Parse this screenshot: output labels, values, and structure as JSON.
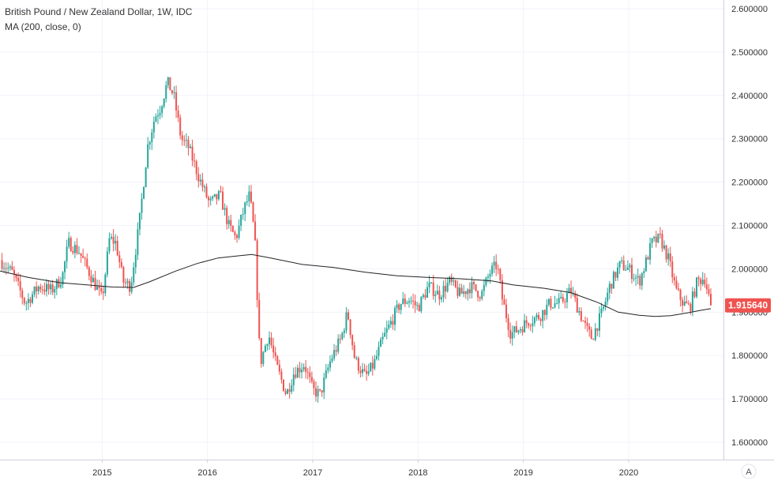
{
  "legend": {
    "symbol_line": "British Pound / New Zealand Dollar, 1W, IDC",
    "indicator_line": "MA (200, close, 0)"
  },
  "price_badge": "1.915640",
  "scale_mode_button": "A",
  "colors": {
    "up": "#26a69a",
    "down": "#ef5350",
    "ma": "#222222",
    "grid": "#f0f3fa",
    "axis_text": "#333333",
    "badge_bg": "#ef5350",
    "badge_text": "#ffffff"
  },
  "chart_data": {
    "type": "candlestick",
    "timeframe": "1W",
    "source": "IDC",
    "series_name": "British Pound / New Zealand Dollar",
    "x_ticks": [
      "2015",
      "2016",
      "2017",
      "2018",
      "2019",
      "2020"
    ],
    "y_ticks": [
      "1.600000",
      "1.700000",
      "1.800000",
      "1.900000",
      "2.000000",
      "2.100000",
      "2.200000",
      "2.300000",
      "2.400000",
      "2.500000",
      "2.600000"
    ],
    "ylim": [
      1.56,
      2.62
    ],
    "xlim": [
      2014.03,
      2020.9
    ],
    "last_price": 1.91564,
    "grid": true,
    "price_path": [
      [
        2014.03,
        2.02
      ],
      [
        2014.15,
        1.99
      ],
      [
        2014.27,
        1.92
      ],
      [
        2014.4,
        1.96
      ],
      [
        2014.52,
        1.95
      ],
      [
        2014.62,
        1.98
      ],
      [
        2014.68,
        2.06
      ],
      [
        2014.78,
        2.04
      ],
      [
        2014.9,
        1.98
      ],
      [
        2015.0,
        1.93
      ],
      [
        2015.07,
        2.07
      ],
      [
        2015.13,
        2.06
      ],
      [
        2015.2,
        1.97
      ],
      [
        2015.27,
        1.96
      ],
      [
        2015.35,
        2.1
      ],
      [
        2015.43,
        2.28
      ],
      [
        2015.5,
        2.35
      ],
      [
        2015.55,
        2.37
      ],
      [
        2015.62,
        2.43
      ],
      [
        2015.68,
        2.4
      ],
      [
        2015.75,
        2.3
      ],
      [
        2015.82,
        2.28
      ],
      [
        2015.92,
        2.21
      ],
      [
        2016.02,
        2.15
      ],
      [
        2016.12,
        2.17
      ],
      [
        2016.2,
        2.1
      ],
      [
        2016.27,
        2.07
      ],
      [
        2016.35,
        2.14
      ],
      [
        2016.4,
        2.17
      ],
      [
        2016.45,
        2.07
      ],
      [
        2016.5,
        1.78
      ],
      [
        2016.58,
        1.85
      ],
      [
        2016.65,
        1.78
      ],
      [
        2016.75,
        1.71
      ],
      [
        2016.82,
        1.76
      ],
      [
        2016.92,
        1.78
      ],
      [
        2017.0,
        1.72
      ],
      [
        2017.07,
        1.71
      ],
      [
        2017.17,
        1.79
      ],
      [
        2017.27,
        1.84
      ],
      [
        2017.33,
        1.9
      ],
      [
        2017.4,
        1.79
      ],
      [
        2017.5,
        1.75
      ],
      [
        2017.58,
        1.78
      ],
      [
        2017.67,
        1.84
      ],
      [
        2017.75,
        1.88
      ],
      [
        2017.83,
        1.92
      ],
      [
        2017.92,
        1.93
      ],
      [
        2018.0,
        1.91
      ],
      [
        2018.1,
        1.96
      ],
      [
        2018.2,
        1.94
      ],
      [
        2018.3,
        1.97
      ],
      [
        2018.4,
        1.94
      ],
      [
        2018.5,
        1.96
      ],
      [
        2018.6,
        1.94
      ],
      [
        2018.68,
        1.99
      ],
      [
        2018.75,
        2.01
      ],
      [
        2018.8,
        1.93
      ],
      [
        2018.88,
        1.85
      ],
      [
        2018.95,
        1.86
      ],
      [
        2019.05,
        1.88
      ],
      [
        2019.15,
        1.89
      ],
      [
        2019.25,
        1.92
      ],
      [
        2019.35,
        1.92
      ],
      [
        2019.45,
        1.95
      ],
      [
        2019.5,
        1.92
      ],
      [
        2019.6,
        1.86
      ],
      [
        2019.65,
        1.84
      ],
      [
        2019.75,
        1.9
      ],
      [
        2019.82,
        1.96
      ],
      [
        2019.92,
        2.01
      ],
      [
        2020.0,
        2.0
      ],
      [
        2020.1,
        1.97
      ],
      [
        2020.17,
        2.02
      ],
      [
        2020.22,
        2.06
      ],
      [
        2020.3,
        2.07
      ],
      [
        2020.38,
        2.02
      ],
      [
        2020.45,
        1.95
      ],
      [
        2020.52,
        1.92
      ],
      [
        2020.58,
        1.91
      ],
      [
        2020.65,
        1.97
      ],
      [
        2020.72,
        1.98
      ],
      [
        2020.78,
        1.915
      ]
    ],
    "moving_average": {
      "name": "MA (200, close, 0)",
      "points": [
        [
          2014.03,
          1.995
        ],
        [
          2014.3,
          1.98
        ],
        [
          2014.6,
          1.968
        ],
        [
          2014.9,
          1.962
        ],
        [
          2015.1,
          1.958
        ],
        [
          2015.3,
          1.957
        ],
        [
          2015.45,
          1.97
        ],
        [
          2015.7,
          1.995
        ],
        [
          2015.9,
          2.012
        ],
        [
          2016.1,
          2.025
        ],
        [
          2016.3,
          2.03
        ],
        [
          2016.42,
          2.033
        ],
        [
          2016.6,
          2.025
        ],
        [
          2016.9,
          2.01
        ],
        [
          2017.2,
          2.003
        ],
        [
          2017.5,
          1.992
        ],
        [
          2017.8,
          1.984
        ],
        [
          2018.1,
          1.98
        ],
        [
          2018.4,
          1.977
        ],
        [
          2018.7,
          1.972
        ],
        [
          2018.9,
          1.963
        ],
        [
          2019.2,
          1.955
        ],
        [
          2019.45,
          1.945
        ],
        [
          2019.7,
          1.923
        ],
        [
          2019.9,
          1.9
        ],
        [
          2020.1,
          1.893
        ],
        [
          2020.25,
          1.89
        ],
        [
          2020.4,
          1.892
        ],
        [
          2020.55,
          1.898
        ],
        [
          2020.7,
          1.905
        ],
        [
          2020.78,
          1.908
        ]
      ]
    }
  }
}
